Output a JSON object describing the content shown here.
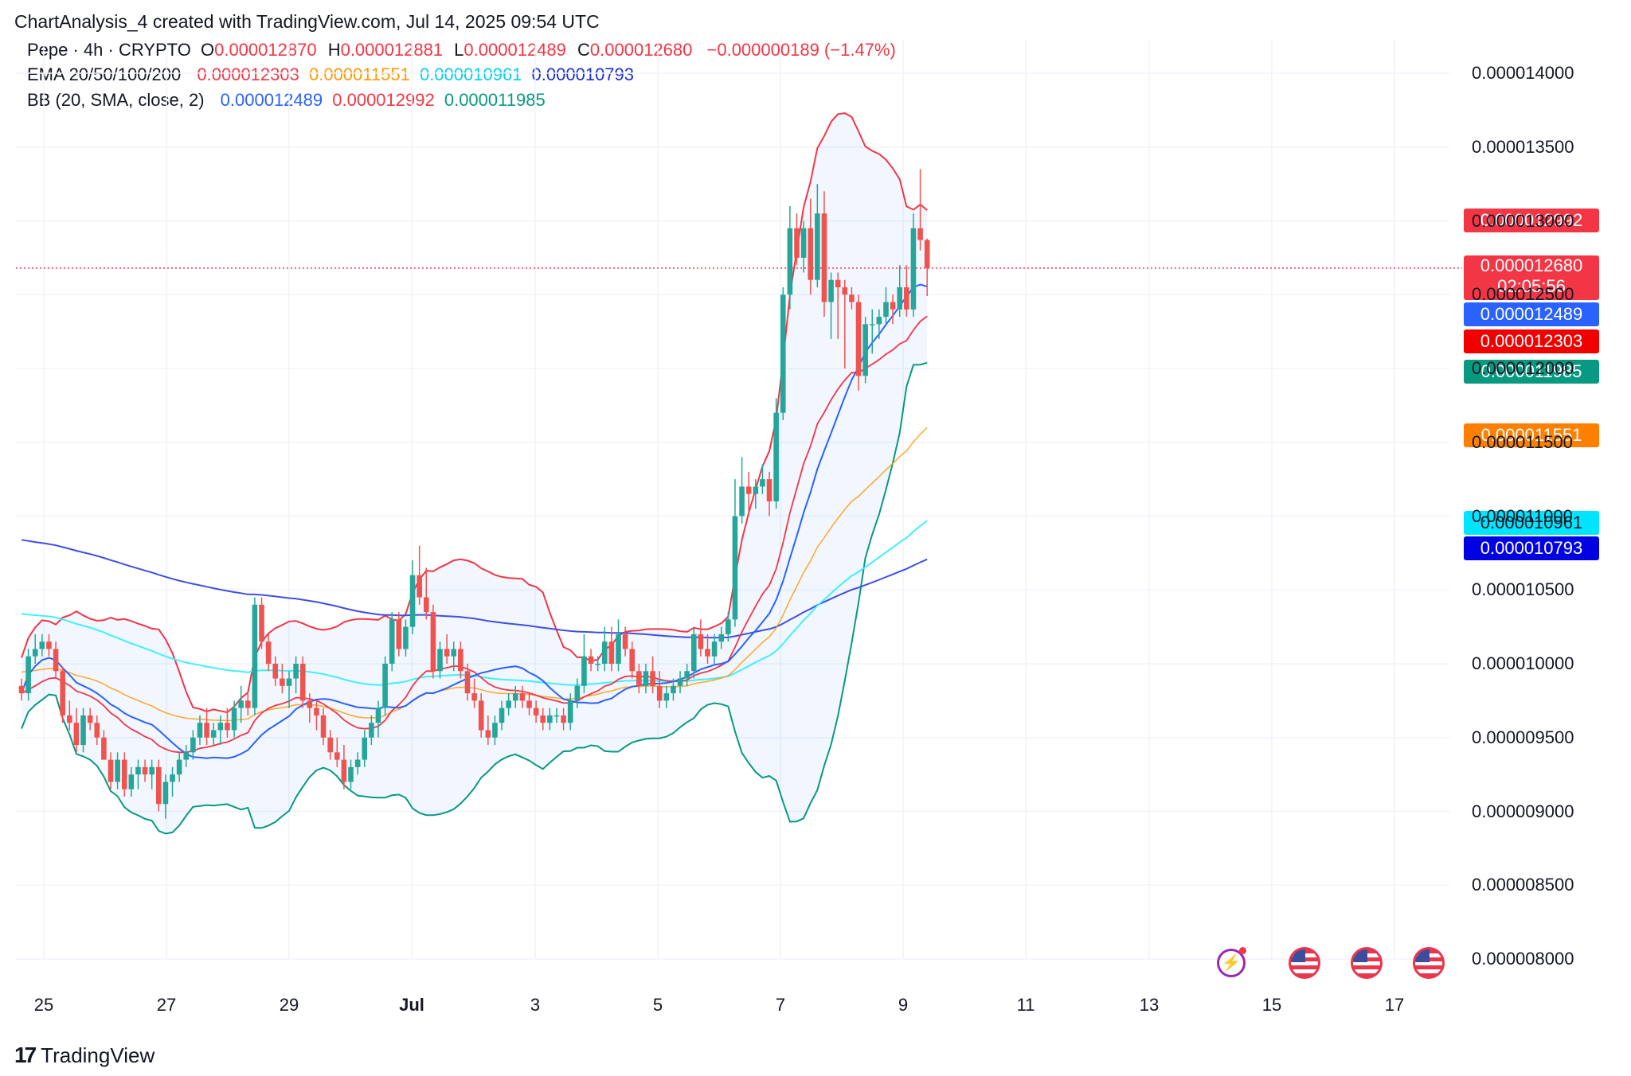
{
  "header": {
    "title": "ChartAnalysis_4 created with TradingView.com, Jul 14, 2025 09:54 UTC"
  },
  "legend": {
    "symbol": "Pepe · 4h · CRYPTO",
    "ohlc": {
      "o_label": "O",
      "o": "0.000012870",
      "h_label": "H",
      "h": "0.000012881",
      "l_label": "L",
      "l": "0.000012489",
      "c_label": "C",
      "c": "0.000012680",
      "change": "−0.000000189 (−1.47%)"
    },
    "ema": {
      "label": "EMA 20/50/100/200",
      "v20": "0.000012303",
      "v50": "0.000011551",
      "v100": "0.000010961",
      "v200": "0.000010793"
    },
    "bb": {
      "label": "BB (20, SMA, close, 2)",
      "basis": "0.000012489",
      "upper": "0.000012992",
      "lower": "0.000011985"
    }
  },
  "price_labels": {
    "bb_upper": "0.000012992",
    "last": "0.000012680",
    "countdown": "02:05:56",
    "bb_basis": "0.000012489",
    "ema20": "0.000012303",
    "bb_lower": "0.000011985",
    "ema50": "0.000011551",
    "ema100": "0.000010961",
    "ema200": "0.000010793"
  },
  "colors": {
    "up": "#26a69a",
    "down": "#ef5350",
    "ema20": "#f23645",
    "ema50": "#ff9800",
    "ema100": "#00e5ff",
    "ema200": "#2962ff",
    "bb_basis": "#2962ff",
    "bb_upper": "#f23645",
    "bb_lower": "#089981"
  },
  "footer": {
    "brand": "TradingView"
  },
  "chart_data": {
    "type": "candlestick",
    "title": "Pepe · 4h · CRYPTO",
    "ylim": [
      7.8e-06,
      1.43e-05
    ],
    "y_ticks": [
      "0.000014000",
      "0.000013500",
      "0.000013000",
      "0.000012500",
      "0.000012000",
      "0.000011500",
      "0.000011000",
      "0.000010500",
      "0.000010000",
      "0.000009500",
      "0.000009000",
      "0.000008500",
      "0.000008000"
    ],
    "x_ticks": [
      "25",
      "27",
      "29",
      "Jul",
      "3",
      "5",
      "7",
      "9",
      "11",
      "13",
      "15",
      "17"
    ],
    "candles": [
      [
        9.85,
        9.9,
        9.75,
        9.8
      ],
      [
        9.8,
        10.1,
        9.75,
        10.05
      ],
      [
        10.05,
        10.2,
        10.0,
        10.1
      ],
      [
        10.1,
        10.2,
        10.05,
        10.15
      ],
      [
        10.15,
        10.2,
        10.05,
        10.1
      ],
      [
        10.1,
        10.15,
        9.9,
        9.95
      ],
      [
        9.95,
        9.98,
        9.6,
        9.65
      ],
      [
        9.65,
        9.75,
        9.55,
        9.6
      ],
      [
        9.6,
        9.7,
        9.4,
        9.45
      ],
      [
        9.45,
        9.7,
        9.4,
        9.65
      ],
      [
        9.65,
        9.7,
        9.55,
        9.6
      ],
      [
        9.6,
        9.65,
        9.45,
        9.5
      ],
      [
        9.5,
        9.55,
        9.35,
        9.35
      ],
      [
        9.35,
        9.4,
        9.15,
        9.2
      ],
      [
        9.2,
        9.4,
        9.15,
        9.35
      ],
      [
        9.35,
        9.4,
        9.1,
        9.15
      ],
      [
        9.15,
        9.3,
        9.1,
        9.25
      ],
      [
        9.25,
        9.35,
        9.15,
        9.3
      ],
      [
        9.3,
        9.35,
        9.2,
        9.25
      ],
      [
        9.25,
        9.35,
        9.15,
        9.3
      ],
      [
        9.3,
        9.35,
        9.0,
        9.05
      ],
      [
        9.05,
        9.25,
        8.95,
        9.2
      ],
      [
        9.2,
        9.3,
        9.1,
        9.25
      ],
      [
        9.25,
        9.4,
        9.2,
        9.35
      ],
      [
        9.35,
        9.45,
        9.3,
        9.4
      ],
      [
        9.4,
        9.55,
        9.35,
        9.5
      ],
      [
        9.5,
        9.65,
        9.45,
        9.6
      ],
      [
        9.6,
        9.7,
        9.45,
        9.5
      ],
      [
        9.5,
        9.6,
        9.45,
        9.55
      ],
      [
        9.55,
        9.65,
        9.45,
        9.6
      ],
      [
        9.6,
        9.7,
        9.5,
        9.55
      ],
      [
        9.55,
        9.75,
        9.5,
        9.7
      ],
      [
        9.7,
        9.85,
        9.6,
        9.75
      ],
      [
        9.75,
        9.8,
        9.65,
        9.7
      ],
      [
        9.7,
        10.45,
        9.65,
        10.4
      ],
      [
        10.4,
        10.45,
        10.1,
        10.15
      ],
      [
        10.15,
        10.2,
        9.95,
        10.0
      ],
      [
        10.0,
        10.05,
        9.85,
        9.9
      ],
      [
        9.9,
        10.0,
        9.8,
        9.85
      ],
      [
        9.85,
        9.95,
        9.7,
        9.9
      ],
      [
        9.9,
        10.05,
        9.8,
        10.0
      ],
      [
        10.0,
        10.05,
        9.7,
        9.75
      ],
      [
        9.75,
        9.8,
        9.6,
        9.7
      ],
      [
        9.7,
        9.75,
        9.55,
        9.65
      ],
      [
        9.65,
        9.7,
        9.45,
        9.5
      ],
      [
        9.5,
        9.55,
        9.35,
        9.4
      ],
      [
        9.4,
        9.5,
        9.3,
        9.35
      ],
      [
        9.35,
        9.45,
        9.15,
        9.2
      ],
      [
        9.2,
        9.35,
        9.15,
        9.3
      ],
      [
        9.3,
        9.4,
        9.25,
        9.35
      ],
      [
        9.35,
        9.55,
        9.3,
        9.5
      ],
      [
        9.5,
        9.65,
        9.45,
        9.6
      ],
      [
        9.6,
        9.75,
        9.5,
        9.7
      ],
      [
        9.7,
        10.05,
        9.65,
        10.0
      ],
      [
        10.0,
        10.35,
        9.95,
        10.3
      ],
      [
        10.3,
        10.35,
        10.05,
        10.1
      ],
      [
        10.1,
        10.3,
        10.05,
        10.25
      ],
      [
        10.25,
        10.7,
        10.2,
        10.6
      ],
      [
        10.6,
        10.8,
        10.4,
        10.45
      ],
      [
        10.45,
        10.65,
        10.3,
        10.35
      ],
      [
        10.35,
        10.4,
        9.9,
        9.95
      ],
      [
        9.95,
        10.15,
        9.9,
        10.1
      ],
      [
        10.1,
        10.2,
        10.0,
        10.05
      ],
      [
        10.05,
        10.15,
        9.95,
        10.1
      ],
      [
        10.1,
        10.15,
        9.9,
        9.95
      ],
      [
        9.95,
        10.0,
        9.75,
        9.8
      ],
      [
        9.8,
        9.9,
        9.7,
        9.75
      ],
      [
        9.75,
        9.8,
        9.5,
        9.55
      ],
      [
        9.55,
        9.65,
        9.45,
        9.5
      ],
      [
        9.5,
        9.65,
        9.45,
        9.6
      ],
      [
        9.6,
        9.75,
        9.55,
        9.7
      ],
      [
        9.7,
        9.8,
        9.65,
        9.75
      ],
      [
        9.75,
        9.85,
        9.7,
        9.8
      ],
      [
        9.8,
        9.85,
        9.7,
        9.75
      ],
      [
        9.75,
        9.8,
        9.65,
        9.7
      ],
      [
        9.7,
        9.75,
        9.6,
        9.65
      ],
      [
        9.65,
        9.7,
        9.55,
        9.6
      ],
      [
        9.6,
        9.7,
        9.55,
        9.65
      ],
      [
        9.65,
        9.7,
        9.6,
        9.65
      ],
      [
        9.65,
        9.7,
        9.55,
        9.6
      ],
      [
        9.6,
        9.8,
        9.55,
        9.75
      ],
      [
        9.75,
        9.9,
        9.7,
        9.85
      ],
      [
        9.85,
        10.2,
        9.8,
        10.05
      ],
      [
        10.05,
        10.1,
        9.95,
        10.0
      ],
      [
        10.0,
        10.05,
        9.95,
        10.0
      ],
      [
        10.0,
        10.25,
        9.95,
        10.15
      ],
      [
        10.15,
        10.25,
        9.95,
        10.0
      ],
      [
        10.0,
        10.3,
        9.95,
        10.2
      ],
      [
        10.2,
        10.25,
        10.05,
        10.1
      ],
      [
        10.1,
        10.15,
        9.9,
        9.95
      ],
      [
        9.95,
        10.0,
        9.8,
        9.85
      ],
      [
        9.85,
        10.0,
        9.8,
        9.95
      ],
      [
        9.95,
        10.05,
        9.8,
        9.85
      ],
      [
        9.85,
        9.95,
        9.7,
        9.75
      ],
      [
        9.75,
        9.85,
        9.7,
        9.8
      ],
      [
        9.8,
        9.9,
        9.75,
        9.85
      ],
      [
        9.85,
        9.95,
        9.8,
        9.9
      ],
      [
        9.9,
        10.0,
        9.85,
        9.95
      ],
      [
        9.95,
        10.25,
        9.9,
        10.2
      ],
      [
        10.2,
        10.3,
        10.05,
        10.1
      ],
      [
        10.1,
        10.2,
        10.0,
        10.05
      ],
      [
        10.05,
        10.2,
        10.0,
        10.15
      ],
      [
        10.15,
        10.25,
        10.1,
        10.2
      ],
      [
        10.2,
        10.35,
        10.15,
        10.3
      ],
      [
        10.3,
        11.25,
        10.25,
        11.0
      ],
      [
        11.0,
        11.4,
        10.95,
        11.2
      ],
      [
        11.2,
        11.3,
        11.0,
        11.15
      ],
      [
        11.15,
        11.25,
        11.05,
        11.2
      ],
      [
        11.2,
        11.35,
        11.15,
        11.25
      ],
      [
        11.25,
        11.3,
        11.0,
        11.1
      ],
      [
        11.1,
        11.8,
        11.05,
        11.7
      ],
      [
        11.7,
        12.55,
        11.65,
        12.5
      ],
      [
        12.5,
        13.1,
        12.4,
        12.95
      ],
      [
        12.95,
        13.05,
        12.7,
        12.75
      ],
      [
        12.75,
        13.0,
        12.65,
        12.95
      ],
      [
        12.95,
        13.15,
        12.5,
        12.6
      ],
      [
        12.6,
        13.25,
        12.55,
        13.05
      ],
      [
        13.05,
        13.2,
        12.35,
        12.45
      ],
      [
        12.45,
        12.65,
        12.2,
        12.6
      ],
      [
        12.6,
        12.65,
        12.2,
        12.55
      ],
      [
        12.55,
        12.6,
        12.0,
        12.5
      ],
      [
        12.5,
        12.55,
        12.4,
        12.45
      ],
      [
        12.45,
        12.5,
        11.85,
        11.95
      ],
      [
        11.95,
        12.35,
        11.9,
        12.3
      ],
      [
        12.3,
        12.4,
        12.1,
        12.3
      ],
      [
        12.3,
        12.4,
        12.2,
        12.35
      ],
      [
        12.35,
        12.55,
        12.3,
        12.45
      ],
      [
        12.45,
        12.5,
        12.3,
        12.4
      ],
      [
        12.4,
        12.7,
        12.35,
        12.55
      ],
      [
        12.55,
        12.7,
        12.35,
        12.4
      ],
      [
        12.4,
        13.05,
        12.35,
        12.95
      ],
      [
        12.95,
        13.35,
        12.8,
        12.87
      ],
      [
        12.87,
        12.88,
        12.49,
        12.68
      ]
    ]
  }
}
